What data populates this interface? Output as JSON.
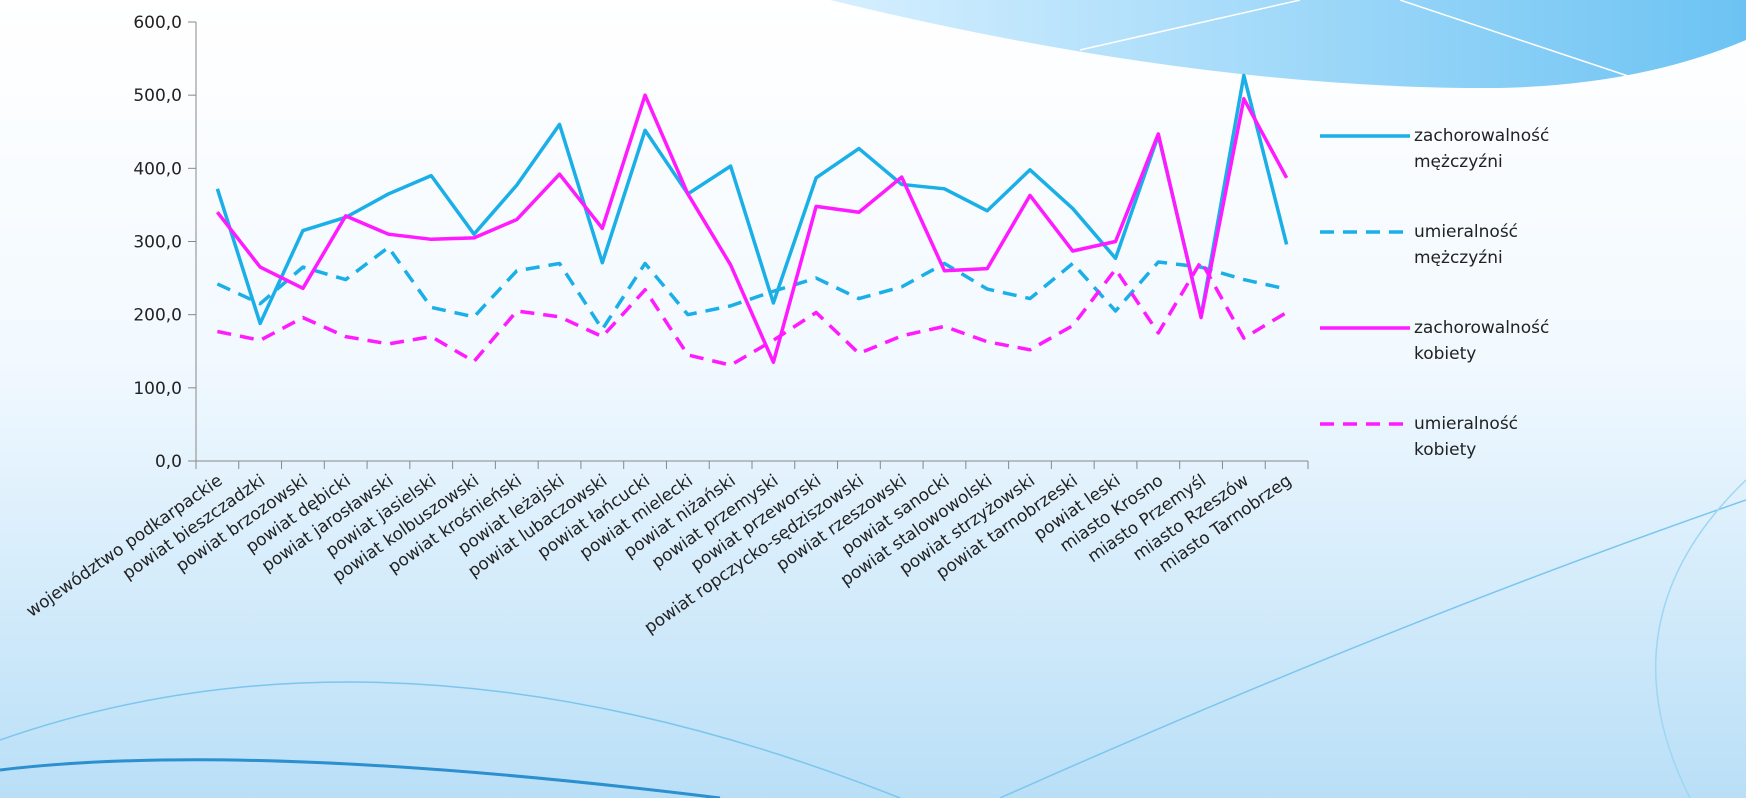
{
  "chart_data": {
    "type": "line",
    "categories": [
      "województwo podkarpackie",
      "powiat bieszczadzki",
      "powiat brzozowski",
      "powiat dębicki",
      "powiat jarosławski",
      "powiat jasielski",
      "powiat kolbuszowski",
      "powiat krośnieński",
      "powiat leżajski",
      "powiat lubaczowski",
      "powiat łańcucki",
      "powiat mielecki",
      "powiat niżański",
      "powiat przemyski",
      "powiat przeworski",
      "powiat ropczycko-sędziszowski",
      "powiat rzeszowski",
      "powiat sanocki",
      "powiat stalowowolski",
      "powiat strzyżowski",
      "powiat tarnobrzeski",
      "powiat leski",
      "miasto Krosno",
      "miasto Przemyśl",
      "miasto Rzeszów",
      "miasto Tarnobrzeg"
    ],
    "series": [
      {
        "name": "zachorowalność mężczyźni",
        "color": "#1aafe6",
        "dashed": false,
        "values": [
          372,
          188,
          315,
          333,
          365,
          390,
          310,
          377,
          460,
          271,
          452,
          365,
          403,
          216,
          387,
          427,
          378,
          372,
          342,
          398,
          345,
          277,
          445,
          198,
          527,
          296
        ]
      },
      {
        "name": "umieralność mężczyźni",
        "color": "#1aafe6",
        "dashed": true,
        "values": [
          242,
          215,
          265,
          248,
          292,
          210,
          197,
          260,
          270,
          180,
          270,
          200,
          212,
          232,
          250,
          222,
          238,
          270,
          235,
          222,
          270,
          205,
          272,
          265,
          248,
          235
        ]
      },
      {
        "name": "zachorowalność kobiety",
        "color": "#ff1aff",
        "dashed": false,
        "values": [
          340,
          265,
          236,
          335,
          310,
          303,
          305,
          330,
          392,
          318,
          500,
          365,
          268,
          135,
          348,
          340,
          388,
          260,
          263,
          363,
          287,
          300,
          447,
          196,
          495,
          387
        ]
      },
      {
        "name": "umieralność kobiety",
        "color": "#ff1aff",
        "dashed": true,
        "values": [
          177,
          165,
          196,
          170,
          160,
          170,
          136,
          205,
          197,
          170,
          234,
          145,
          131,
          165,
          203,
          147,
          171,
          184,
          163,
          152,
          185,
          262,
          175,
          273,
          168,
          203
        ]
      }
    ],
    "ylim": [
      0,
      600
    ],
    "yticks": [
      {
        "value": 0,
        "label": "0,0"
      },
      {
        "value": 100,
        "label": "100,0"
      },
      {
        "value": 200,
        "label": "200,0"
      },
      {
        "value": 300,
        "label": "300,0"
      },
      {
        "value": 400,
        "label": "400,0"
      },
      {
        "value": 500,
        "label": "500,0"
      },
      {
        "value": 600,
        "label": "600,0"
      }
    ],
    "grid": false
  }
}
